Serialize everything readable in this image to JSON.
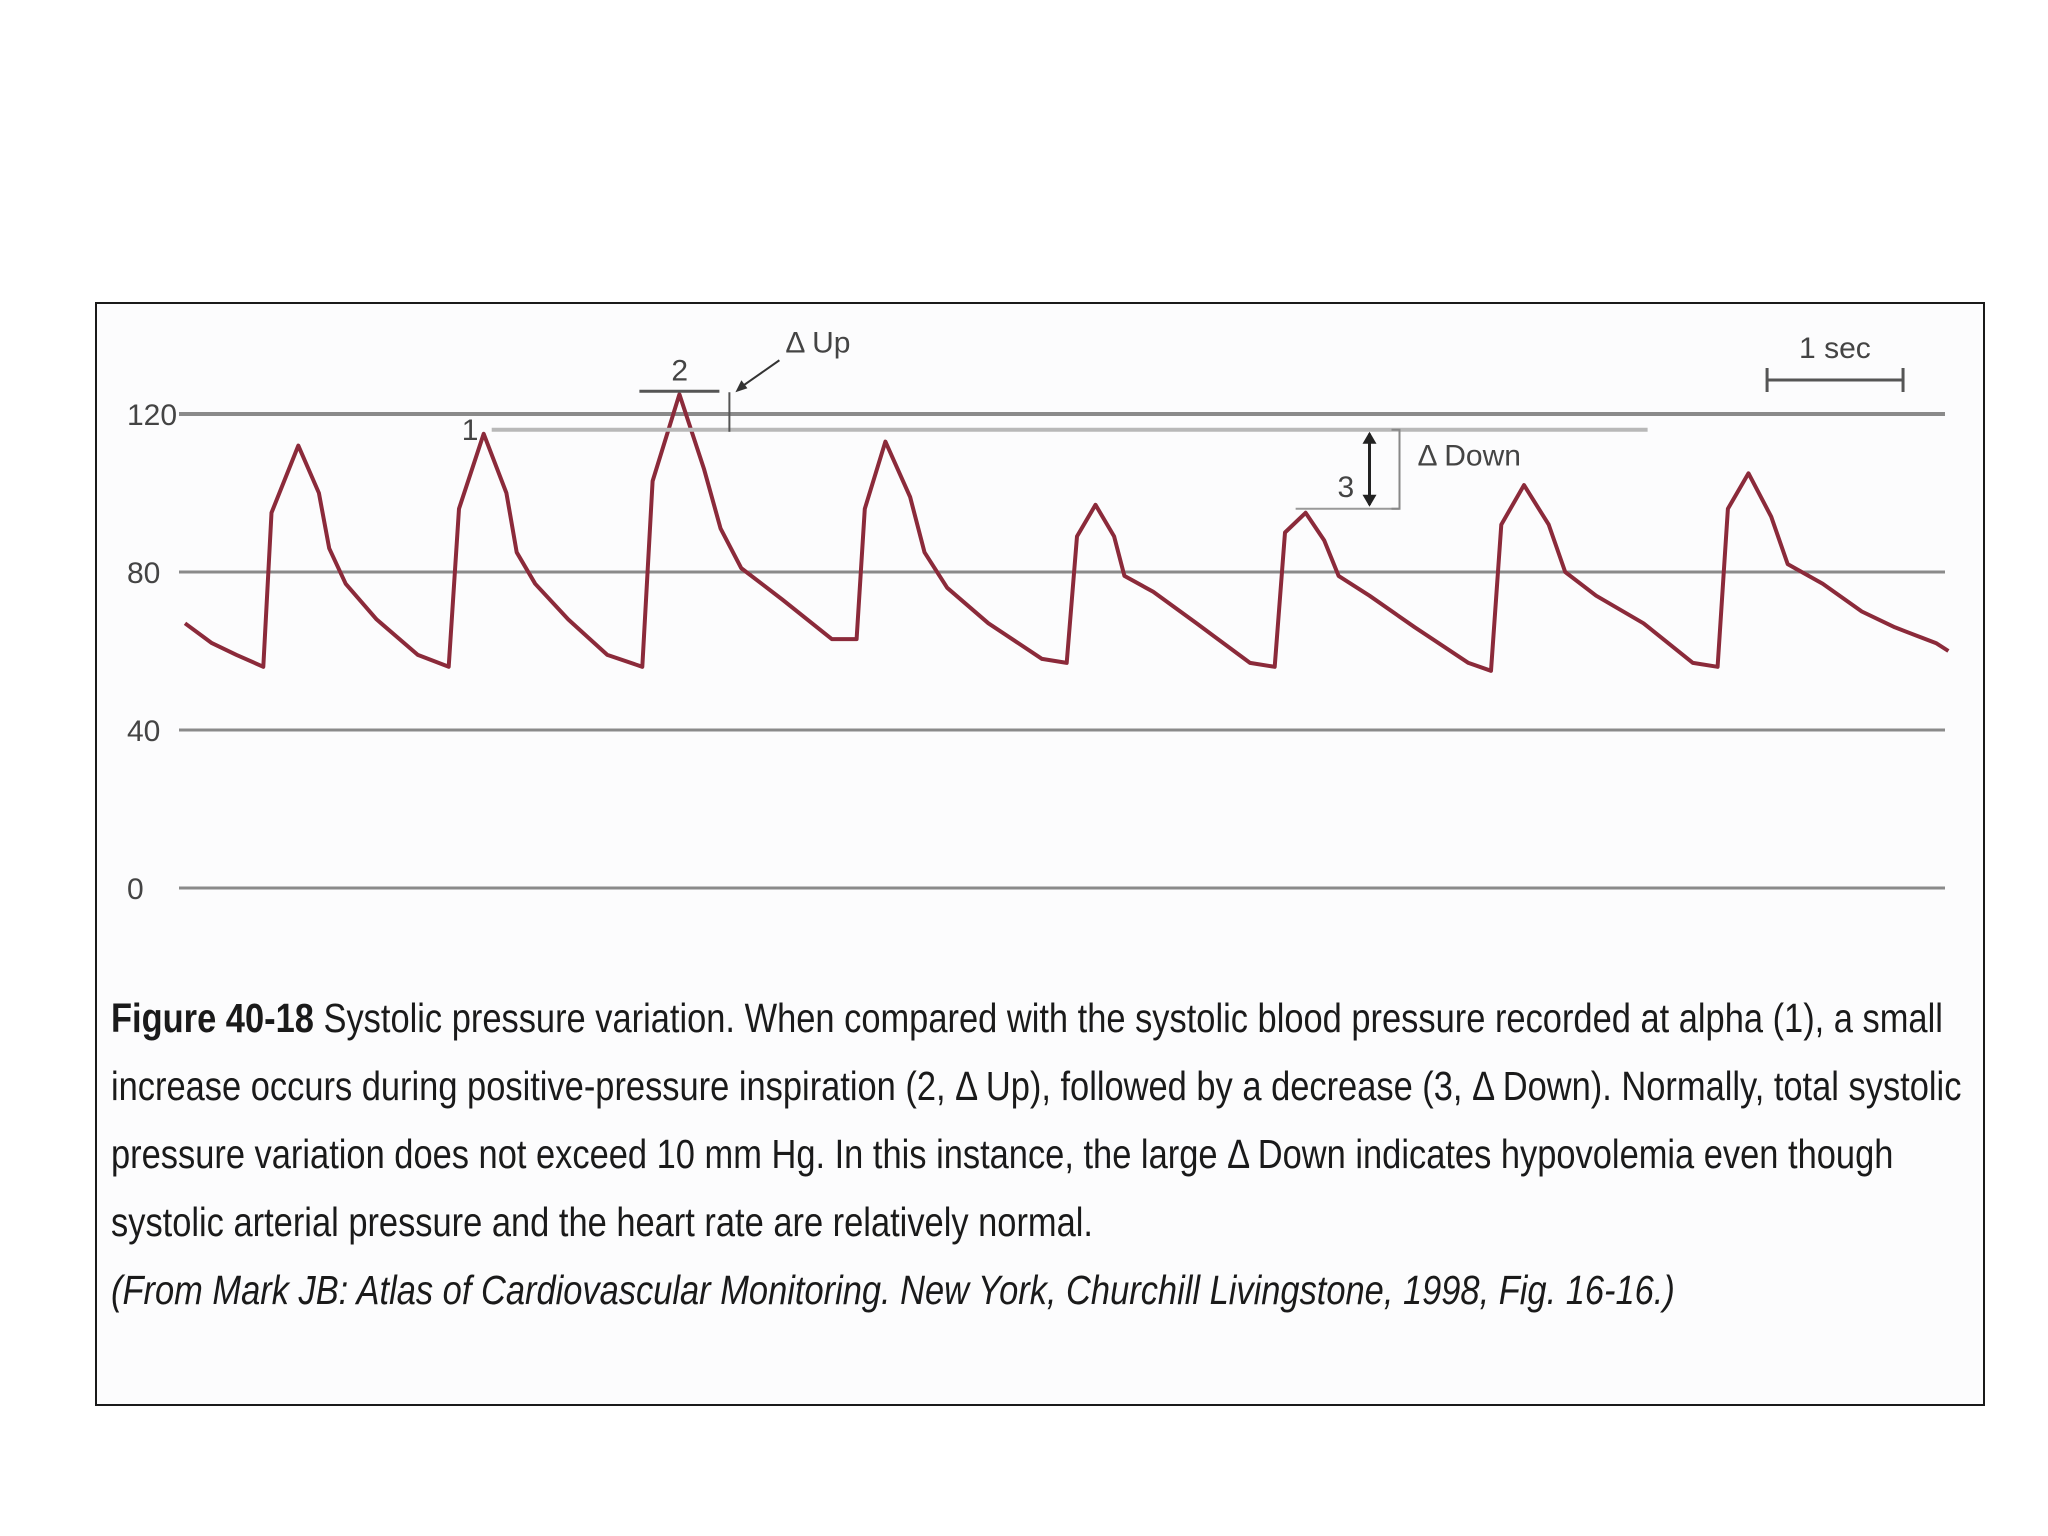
{
  "chart_data": {
    "type": "line",
    "title": "",
    "xlabel": "",
    "ylabel": "",
    "ylim": [
      0,
      140
    ],
    "yticks": [
      0,
      40,
      80,
      120
    ],
    "grid": true,
    "line_color": "#8b2a3a",
    "grid_color": "#8a8a8a",
    "time_scale_label": "1 sec",
    "series": [
      {
        "name": "",
        "x": [
          0.0,
          0.13,
          0.25,
          0.38,
          0.42,
          0.55,
          0.65,
          0.7,
          0.78,
          0.93,
          1.13,
          1.28,
          1.33,
          1.45,
          1.56,
          1.61,
          1.7,
          1.86,
          2.05,
          2.22,
          2.27,
          2.4,
          2.52,
          2.6,
          2.7,
          2.9,
          3.14,
          3.26,
          3.3,
          3.4,
          3.52,
          3.59,
          3.7,
          3.9,
          4.16,
          4.28,
          4.33,
          4.42,
          4.51,
          4.56,
          4.7,
          4.91,
          5.17,
          5.29,
          5.34,
          5.44,
          5.53,
          5.6,
          5.75,
          5.97,
          6.23,
          6.34,
          6.39,
          6.5,
          6.62,
          6.7,
          6.85,
          7.08,
          7.32,
          7.44,
          7.49,
          7.59,
          7.7,
          7.78,
          7.95,
          8.14,
          8.3,
          8.4,
          8.5,
          8.56
        ],
        "values": [
          67,
          62,
          59,
          56,
          95,
          112,
          100,
          86,
          77,
          68,
          59,
          56,
          96,
          115,
          100,
          85,
          77,
          68,
          59,
          56,
          103,
          125,
          106,
          91,
          81,
          73,
          63,
          63,
          96,
          113,
          99,
          85,
          76,
          67,
          58,
          57,
          89,
          97,
          89,
          79,
          75,
          67,
          57,
          56,
          90,
          95,
          88,
          79,
          74,
          66,
          57,
          55,
          92,
          102,
          92,
          80,
          74,
          67,
          57,
          56,
          96,
          105,
          94,
          82,
          77,
          70,
          66,
          64,
          62,
          60
        ]
      }
    ],
    "annotations": [
      {
        "label": "1",
        "value": 116
      },
      {
        "label": "2",
        "value": 125
      },
      {
        "label": "3",
        "value": 96
      },
      {
        "label": "Δ Up"
      },
      {
        "label": "Δ Down"
      }
    ]
  },
  "caption": {
    "figure_label": "Figure 40-18",
    "text": " Systolic pressure variation. When compared with the systolic blood pressure recorded at alpha (1), a small increase occurs during positive-pressure inspiration (2, Δ Up), followed by a decrease (3, Δ Down). Normally, total systolic pressure variation does not exceed 10 mm Hg. In this instance, the large Δ Down indicates hypovolemia even though systolic arterial pressure and the heart rate are relatively normal.",
    "citation": "(From Mark JB: Atlas of Cardiovascular Monitoring. New York, Churchill Livingstone, 1998, Fig. 16-16.)"
  }
}
